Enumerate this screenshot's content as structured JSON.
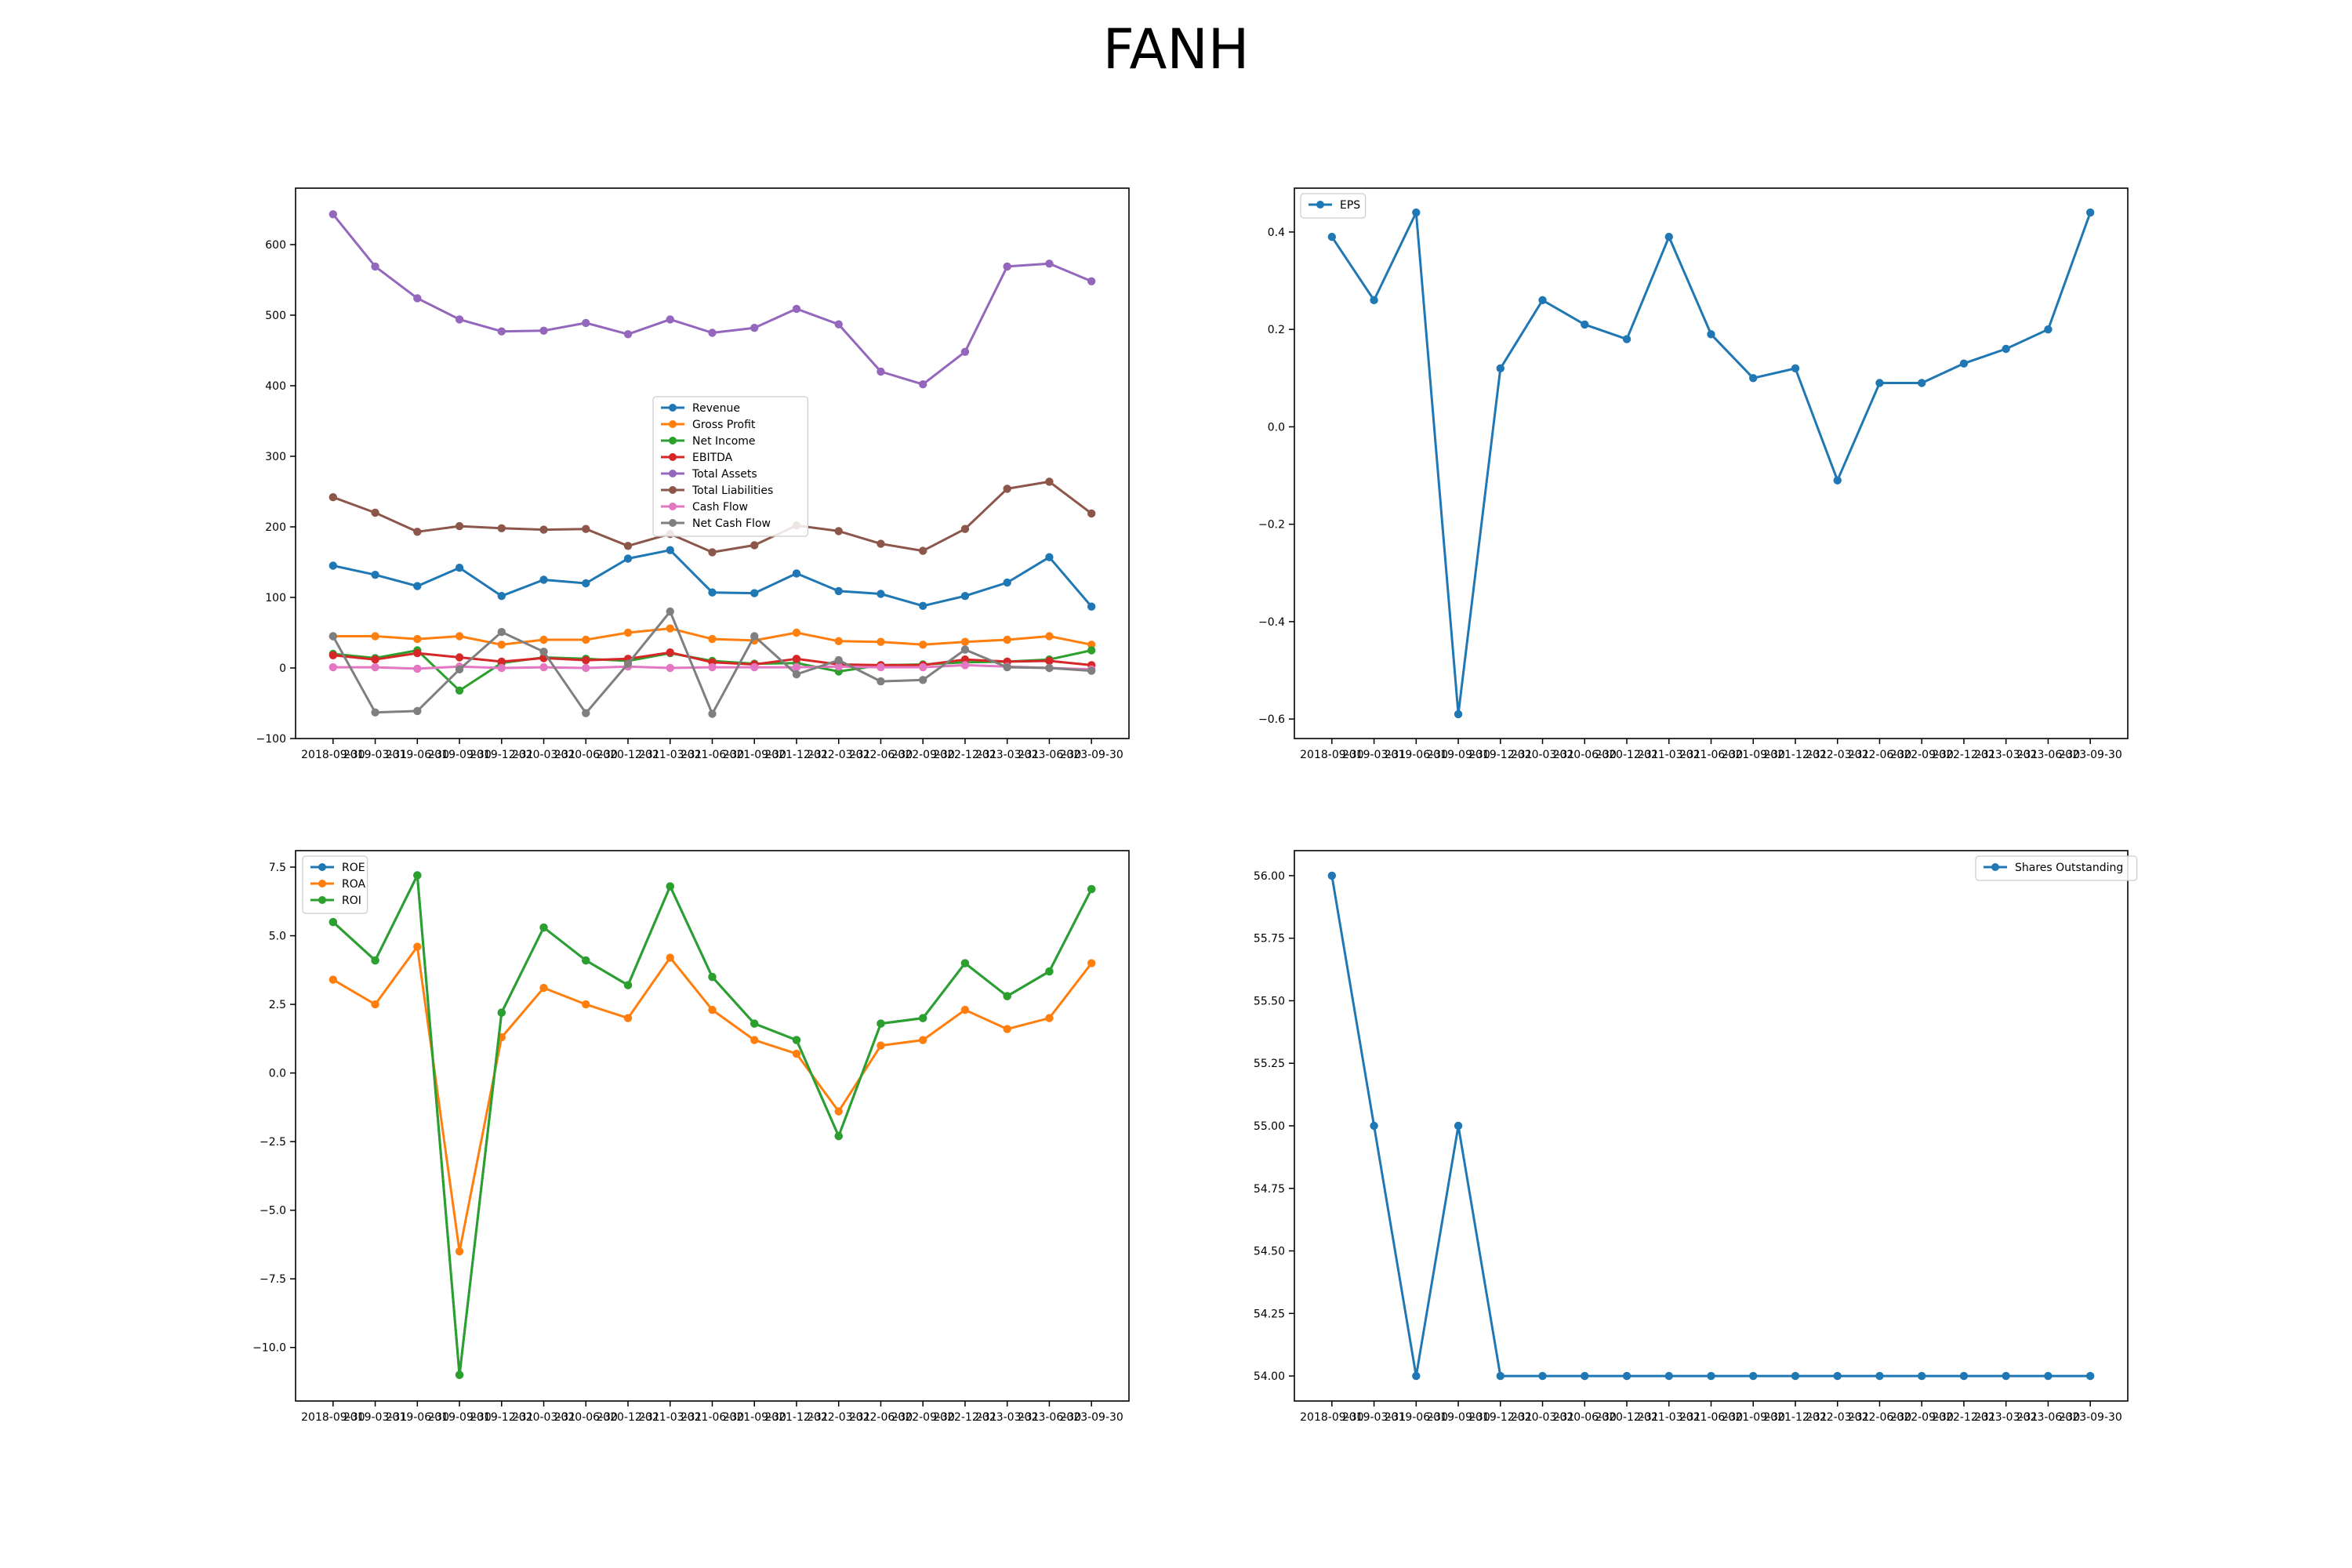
{
  "figure": {
    "title": "FANH"
  },
  "colors": {
    "c0": "#1f77b4",
    "c1": "#ff7f0e",
    "c2": "#2ca02c",
    "c3": "#d62728",
    "c4": "#9467bd",
    "c5": "#8c564b",
    "c6": "#e377c2",
    "c7": "#7f7f7f"
  },
  "chart_data": [
    {
      "type": "line",
      "title": "",
      "xlabel": "",
      "ylabel": "",
      "x": [
        "2018-09-30",
        "2019-03-31",
        "2019-06-30",
        "2019-09-30",
        "2019-12-31",
        "2020-03-31",
        "2020-06-30",
        "2020-12-31",
        "2021-03-31",
        "2021-06-30",
        "2021-09-30",
        "2021-12-31",
        "2022-03-31",
        "2022-06-30",
        "2022-09-30",
        "2022-12-31",
        "2023-03-31",
        "2023-06-30",
        "2023-09-30"
      ],
      "ylim": [
        -100,
        680
      ],
      "yticks": [
        -100,
        0,
        100,
        200,
        300,
        400,
        500,
        600
      ],
      "legend_position": "center",
      "grid": false,
      "series": [
        {
          "name": "Revenue",
          "color": "#1f77b4",
          "values": [
            145,
            132,
            116,
            142,
            102,
            125,
            120,
            155,
            167,
            107,
            106,
            134,
            109,
            105,
            88,
            102,
            121,
            157,
            87
          ]
        },
        {
          "name": "Gross Profit",
          "color": "#ff7f0e",
          "values": [
            45,
            45,
            41,
            45,
            33,
            40,
            40,
            50,
            56,
            41,
            39,
            50,
            38,
            37,
            33,
            37,
            40,
            45,
            33
          ]
        },
        {
          "name": "Net Income",
          "color": "#2ca02c",
          "values": [
            20,
            14,
            25,
            -32,
            7,
            15,
            13,
            10,
            21,
            10,
            6,
            7,
            -5,
            4,
            5,
            8,
            9,
            12,
            25
          ]
        },
        {
          "name": "EBITDA",
          "color": "#d62728",
          "values": [
            18,
            12,
            21,
            15,
            9,
            14,
            11,
            13,
            22,
            8,
            5,
            13,
            5,
            4,
            4,
            12,
            9,
            10,
            4
          ]
        },
        {
          "name": "Total Assets",
          "color": "#9467bd",
          "values": [
            643,
            569,
            524,
            494,
            477,
            478,
            489,
            473,
            494,
            475,
            482,
            509,
            487,
            420,
            402,
            448,
            569,
            573,
            548
          ]
        },
        {
          "name": "Total Liabilities",
          "color": "#8c564b",
          "values": [
            242,
            220,
            193,
            201,
            198,
            196,
            197,
            173,
            190,
            164,
            174,
            202,
            194,
            176,
            166,
            197,
            254,
            264,
            219
          ]
        },
        {
          "name": "Cash Flow",
          "color": "#e377c2",
          "values": [
            1,
            1,
            -1,
            2,
            0,
            1,
            0,
            2,
            0,
            1,
            1,
            1,
            2,
            1,
            1,
            4,
            2,
            0,
            -2
          ]
        },
        {
          "name": "Net Cash Flow",
          "color": "#7f7f7f",
          "values": [
            45,
            -63,
            -61,
            -2,
            51,
            23,
            -64,
            6,
            80,
            -65,
            45,
            -9,
            11,
            -19,
            -17,
            26,
            1,
            0,
            -4
          ]
        }
      ]
    },
    {
      "type": "line",
      "title": "",
      "xlabel": "",
      "ylabel": "",
      "x": [
        "2018-09-30",
        "2019-03-31",
        "2019-06-30",
        "2019-09-30",
        "2019-12-31",
        "2020-03-31",
        "2020-06-30",
        "2020-12-31",
        "2021-03-31",
        "2021-06-30",
        "2021-09-30",
        "2021-12-31",
        "2022-03-31",
        "2022-06-30",
        "2022-09-30",
        "2022-12-31",
        "2023-03-31",
        "2023-06-30",
        "2023-09-30"
      ],
      "ylim": [
        -0.64,
        0.49
      ],
      "yticks": [
        -0.6,
        -0.4,
        -0.2,
        0.0,
        0.2,
        0.4
      ],
      "legend_position": "upper left",
      "grid": false,
      "series": [
        {
          "name": "EPS",
          "color": "#1f77b4",
          "values": [
            0.39,
            0.26,
            0.44,
            -0.59,
            0.12,
            0.26,
            0.21,
            0.18,
            0.39,
            0.19,
            0.1,
            0.12,
            -0.11,
            0.09,
            0.09,
            0.13,
            0.16,
            0.2,
            0.44
          ]
        }
      ]
    },
    {
      "type": "line",
      "title": "",
      "xlabel": "",
      "ylabel": "",
      "x": [
        "2018-09-30",
        "2019-03-31",
        "2019-06-30",
        "2019-09-30",
        "2019-12-31",
        "2020-03-31",
        "2020-06-30",
        "2020-12-31",
        "2021-03-31",
        "2021-06-30",
        "2021-09-30",
        "2021-12-31",
        "2022-03-31",
        "2022-06-30",
        "2022-09-30",
        "2022-12-31",
        "2023-03-31",
        "2023-06-30",
        "2023-09-30"
      ],
      "ylim": [
        -11.95,
        8.1
      ],
      "yticks": [
        -10.0,
        -7.5,
        -5.0,
        -2.5,
        0.0,
        2.5,
        5.0,
        7.5
      ],
      "legend_position": "upper left",
      "grid": false,
      "series": [
        {
          "name": "ROE",
          "color": "#1f77b4",
          "values": [
            5.5,
            4.1,
            7.2,
            -11.0,
            2.2,
            5.3,
            4.1,
            3.2,
            6.8,
            3.5,
            1.8,
            1.2,
            -2.3,
            1.8,
            2.0,
            4.0,
            2.8,
            3.7,
            6.7
          ]
        },
        {
          "name": "ROA",
          "color": "#ff7f0e",
          "values": [
            3.4,
            2.5,
            4.6,
            -6.5,
            1.3,
            3.1,
            2.5,
            2.0,
            4.2,
            2.3,
            1.2,
            0.7,
            -1.4,
            1.0,
            1.2,
            2.3,
            1.6,
            2.0,
            4.0
          ]
        },
        {
          "name": "ROI",
          "color": "#2ca02c",
          "values": [
            5.5,
            4.1,
            7.2,
            -11.0,
            2.2,
            5.3,
            4.1,
            3.2,
            6.8,
            3.5,
            1.8,
            1.2,
            -2.3,
            1.8,
            2.0,
            4.0,
            2.8,
            3.7,
            6.7
          ]
        }
      ]
    },
    {
      "type": "line",
      "title": "",
      "xlabel": "",
      "ylabel": "",
      "x": [
        "2018-09-30",
        "2019-03-31",
        "2019-06-30",
        "2019-09-30",
        "2019-12-31",
        "2020-03-31",
        "2020-06-30",
        "2020-12-31",
        "2021-03-31",
        "2021-06-30",
        "2021-09-30",
        "2021-12-31",
        "2022-03-31",
        "2022-06-30",
        "2022-09-30",
        "2022-12-31",
        "2023-03-31",
        "2023-06-30",
        "2023-09-30"
      ],
      "ylim": [
        53.9,
        56.1
      ],
      "yticks": [
        54.0,
        54.25,
        54.5,
        54.75,
        55.0,
        55.25,
        55.5,
        55.75,
        56.0
      ],
      "ytick_decimals": 2,
      "legend_position": "upper right",
      "grid": false,
      "series": [
        {
          "name": "Shares Outstanding",
          "color": "#1f77b4",
          "values": [
            56,
            55,
            54,
            55,
            54,
            54,
            54,
            54,
            54,
            54,
            54,
            54,
            54,
            54,
            54,
            54,
            54,
            54,
            54
          ]
        }
      ]
    }
  ]
}
